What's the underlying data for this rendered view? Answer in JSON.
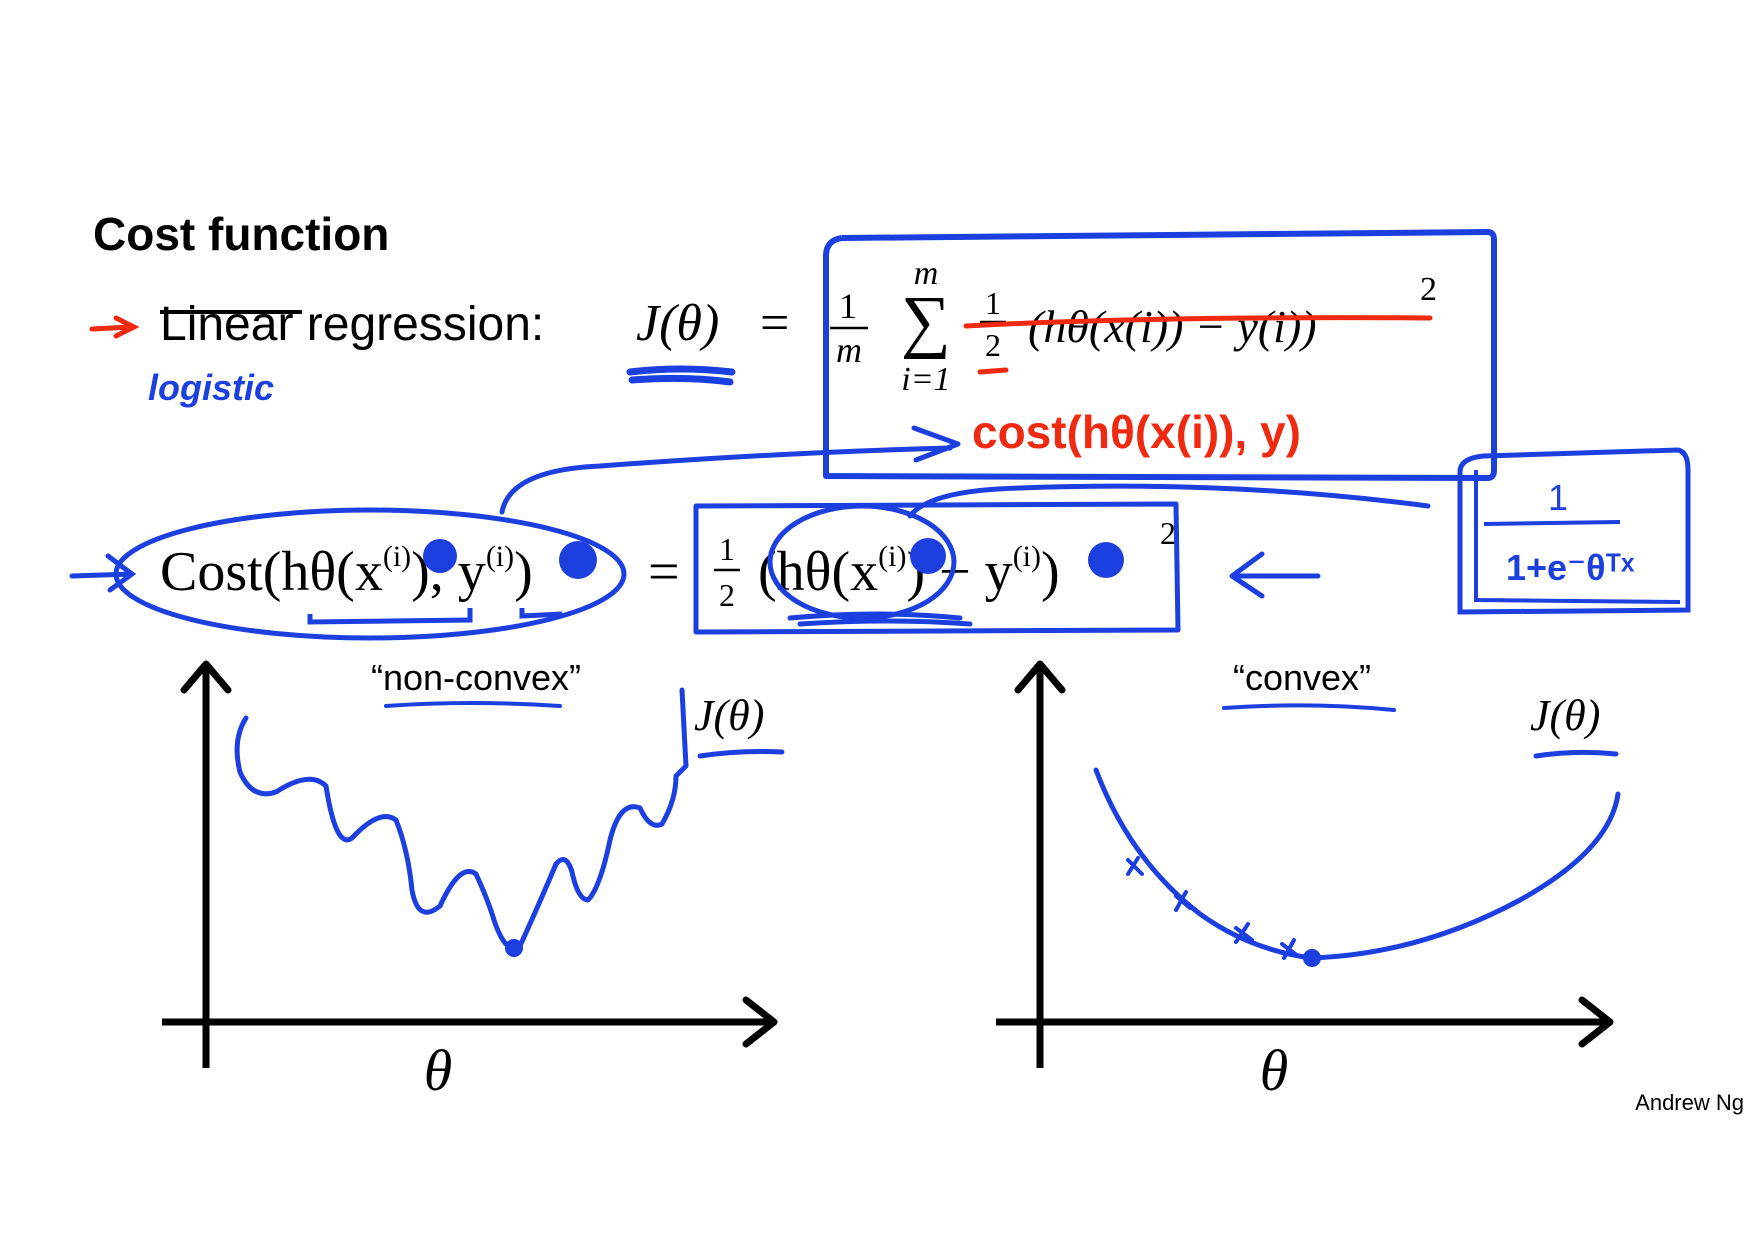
{
  "slide": {
    "title": "Cost function",
    "author": "Andrew Ng"
  },
  "line1": {
    "struck_word": "Linear",
    "label": " regression:",
    "lhs": "J(θ)",
    "equals": "=",
    "frac_one": "1",
    "frac_m": "m",
    "sum_top": "m",
    "sum_symbol": "∑",
    "sum_bottom": "i=1",
    "half_one": "1",
    "half_two": "2",
    "struck_term": "(hθ(x(i)) − y(i))",
    "square": "2"
  },
  "handwriting": {
    "logistic": "logistic",
    "cost_red": "cost(hθ(x(i)), y)",
    "sigmoid_top": "1",
    "sigmoid_bottom": "1+e⁻θᵀˣ"
  },
  "line2": {
    "lhs": "Cost(hθ(x",
    "lhs_sup": "(i)",
    "lhs_mid": "), y",
    "lhs_sup2": "(i)",
    "lhs_end": ")",
    "equals": "=",
    "half_one": "1",
    "half_two": "2",
    "rhs": "(hθ(x",
    "rhs_sup": "(i)",
    "rhs_mid": ") − y",
    "rhs_sup2": "(i)",
    "rhs_end": ")",
    "square": "2"
  },
  "graphs": {
    "left_label": "“non-convex”",
    "right_label": "“convex”",
    "left_curve_label": "J(θ)",
    "right_curve_label": "J(θ)",
    "left_axis": "θ",
    "right_axis": "θ"
  },
  "colors": {
    "ink_blue": "#1c3fe0",
    "ink_red": "#f02a10",
    "black": "#000000"
  }
}
